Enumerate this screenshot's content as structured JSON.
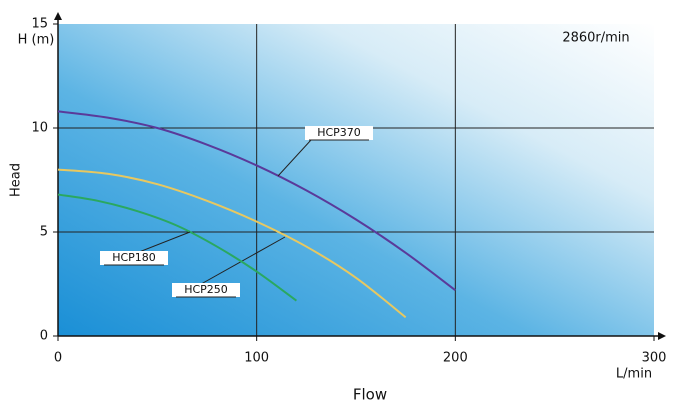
{
  "chart_data": {
    "type": "line",
    "annotation": "2860r/min",
    "ylabel": "Head",
    "xlabel": "Flow",
    "y_unit_label": "H (m)",
    "x_unit_label": "L/min",
    "xlim": [
      0,
      300
    ],
    "ylim": [
      0,
      15
    ],
    "xticks": [
      0,
      100,
      200,
      300
    ],
    "yticks": [
      0,
      5,
      10,
      15
    ],
    "grid": true,
    "series": [
      {
        "name": "HCP370",
        "color": "#5a3a9a",
        "x": [
          0,
          25,
          50,
          75,
          100,
          125,
          150,
          175,
          200
        ],
        "values": [
          10.8,
          10.5,
          10.0,
          9.2,
          8.2,
          7.0,
          5.6,
          4.0,
          2.2
        ]
      },
      {
        "name": "HCP250",
        "color": "#e8c860",
        "x": [
          0,
          25,
          50,
          75,
          100,
          125,
          150,
          175
        ],
        "values": [
          8.0,
          7.8,
          7.3,
          6.5,
          5.5,
          4.3,
          2.8,
          0.9
        ]
      },
      {
        "name": "HCP180",
        "color": "#2aa860",
        "x": [
          0,
          20,
          40,
          60,
          80,
          100,
          120
        ],
        "values": [
          6.8,
          6.5,
          6.0,
          5.3,
          4.3,
          3.1,
          1.7
        ]
      }
    ]
  }
}
